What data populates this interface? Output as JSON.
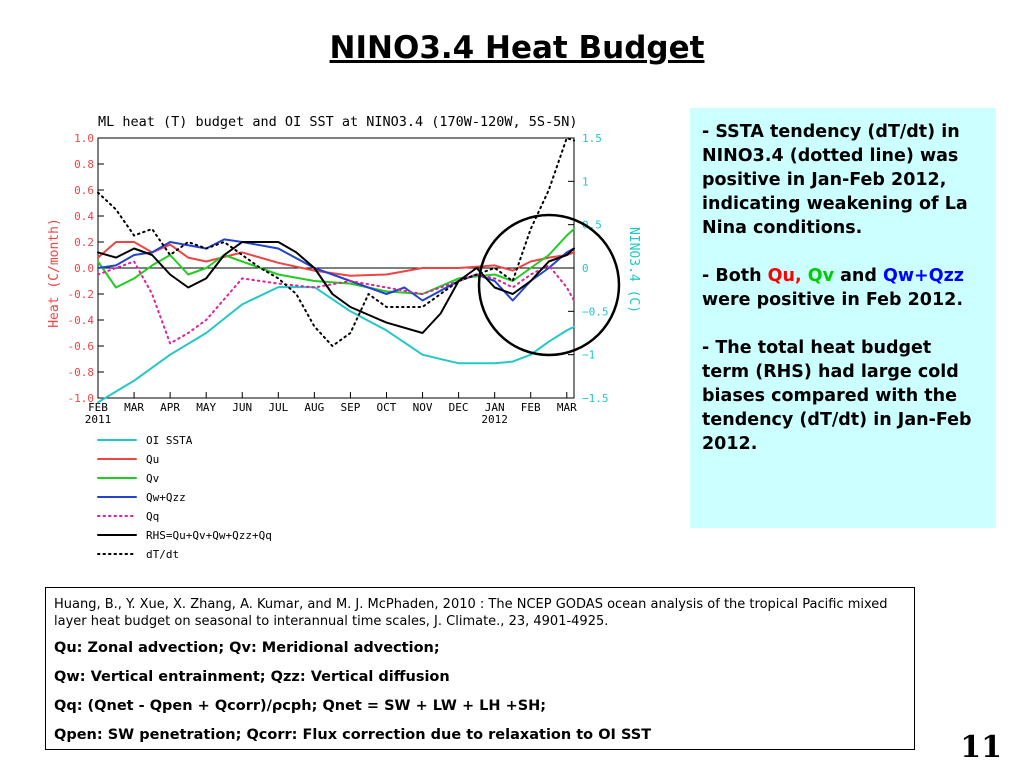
{
  "slide": {
    "title": "NINO3.4 Heat Budget",
    "page_number": "11"
  },
  "info_box": {
    "p1": "SSTA tendency (dT/dt) in NINO3.4 (dotted line) was positive in Jan-Feb 2012, indicating weakening of La Nina conditions.",
    "p2_prefix": "Both ",
    "p2_qu": "Qu,",
    "p2_qv": "Qv",
    "p2_mid": " and ",
    "p2_qwqzz": "Qw+Qzz",
    "p2_suffix": " were positive in Feb 2012.",
    "p3": "The total heat budget term (RHS) had large cold biases compared with the tendency (dT/dt)  in Jan-Feb 2012.",
    "dash": "-"
  },
  "reference": {
    "citation": "Huang, B., Y. Xue, X. Zhang, A. Kumar, and M. J. McPhaden, 2010 : The NCEP GODAS ocean analysis of the tropical Pacific mixed layer heat budget on seasonal to interannual time scales,  J. Climate., 23, 4901-4925.",
    "def1": "Qu: Zonal advection;    Qv: Meridional advection;",
    "def2": "Qw: Vertical entrainment;  Qzz: Vertical diffusion",
    "def3": "Qq: (Qnet - Qpen + Qcorr)/ρcph;  Qnet = SW + LW + LH +SH;",
    "def4": "Qpen: SW penetration; Qcorr: Flux correction due to relaxation to OI SST"
  },
  "chart_data": {
    "type": "line",
    "title": "ML heat (T) budget and OI SST at NINO3.4 (170W-120W, 5S-5N)",
    "ylabel_left": "Heat (C/month)",
    "ylabel_right": "NINO3.4 (C)",
    "ylim_left": [
      -1.0,
      1.0
    ],
    "ylim_right": [
      -1.5,
      1.5
    ],
    "yticks_left": [
      "1.0",
      "0.8",
      "0.6",
      "0.4",
      "0.2",
      "0.0",
      "-0.2",
      "-0.4",
      "-0.6",
      "-0.8",
      "-1.0"
    ],
    "yticks_right": [
      "1.5",
      "1",
      "0.5",
      "0",
      "-0.5",
      "-1",
      "-1.5"
    ],
    "xticks": [
      "FEB",
      "MAR",
      "APR",
      "MAY",
      "JUN",
      "JUL",
      "AUG",
      "SEP",
      "OCT",
      "NOV",
      "DEC",
      "JAN",
      "FEB",
      "MAR"
    ],
    "xsublabels": [
      "2011",
      "2012"
    ],
    "x_range": [
      0,
      13.2
    ],
    "grid": false,
    "legend_position": "below",
    "series": [
      {
        "name": "OI SSTA",
        "axis": "right",
        "color": "#22c8c8",
        "dash": "solid",
        "x": [
          0,
          1,
          2,
          3,
          4,
          5,
          6,
          7,
          8,
          9,
          10,
          11,
          11.5,
          12,
          12.5,
          13,
          13.2
        ],
        "y": [
          -1.55,
          -1.3,
          -1.0,
          -0.75,
          -0.42,
          -0.22,
          -0.22,
          -0.5,
          -0.72,
          -1.0,
          -1.1,
          -1.1,
          -1.08,
          -1.0,
          -0.85,
          -0.72,
          -0.68
        ]
      },
      {
        "name": "Qu",
        "axis": "left",
        "color": "#ee4444",
        "dash": "solid",
        "x": [
          0,
          0.5,
          1,
          1.5,
          2,
          2.5,
          3,
          4,
          5,
          6,
          7,
          8,
          9,
          10,
          11,
          11.5,
          12,
          12.5,
          13,
          13.2
        ],
        "y": [
          0.08,
          0.2,
          0.2,
          0.12,
          0.18,
          0.08,
          0.05,
          0.12,
          0.04,
          -0.02,
          -0.06,
          -0.05,
          0.0,
          0.0,
          0.02,
          -0.02,
          0.05,
          0.08,
          0.1,
          0.12
        ]
      },
      {
        "name": "Qv",
        "axis": "left",
        "color": "#22cc22",
        "dash": "solid",
        "x": [
          0,
          0.5,
          1,
          1.5,
          2,
          2.5,
          3,
          3.5,
          4,
          5,
          6,
          7,
          8,
          9,
          10,
          11,
          11.5,
          12,
          12.5,
          13,
          13.2
        ],
        "y": [
          0.05,
          -0.15,
          -0.08,
          0.02,
          0.1,
          -0.05,
          0.0,
          0.1,
          0.05,
          -0.05,
          -0.1,
          -0.12,
          -0.18,
          -0.2,
          -0.08,
          -0.05,
          -0.1,
          0.0,
          0.1,
          0.25,
          0.3
        ]
      },
      {
        "name": "Qw+Qzz",
        "axis": "left",
        "color": "#2244cc",
        "dash": "solid",
        "x": [
          0,
          0.5,
          1,
          1.5,
          2,
          3,
          3.5,
          4,
          5,
          6,
          7,
          8,
          8.5,
          9,
          10,
          10.5,
          11,
          11.5,
          12,
          12.5,
          13,
          13.2
        ],
        "y": [
          0.0,
          0.02,
          0.1,
          0.12,
          0.2,
          0.15,
          0.22,
          0.2,
          0.15,
          0.0,
          -0.1,
          -0.2,
          -0.15,
          -0.25,
          -0.1,
          -0.05,
          -0.1,
          -0.25,
          -0.1,
          0.0,
          0.12,
          0.15
        ]
      },
      {
        "name": "Qq",
        "axis": "left",
        "color": "#e0209a",
        "dash": "dot",
        "x": [
          0,
          0.5,
          1,
          1.5,
          2,
          2.5,
          3,
          4,
          5,
          6,
          7,
          8,
          9,
          10,
          10.5,
          11,
          11.5,
          12,
          12.5,
          13,
          13.2
        ],
        "y": [
          -0.05,
          0.0,
          0.05,
          -0.2,
          -0.58,
          -0.5,
          -0.4,
          -0.08,
          -0.12,
          -0.15,
          -0.1,
          -0.15,
          -0.2,
          -0.1,
          -0.05,
          -0.08,
          -0.15,
          -0.05,
          0.02,
          -0.15,
          -0.25
        ]
      },
      {
        "name": "RHS=Qu+Qv+Qw+Qzz+Qq",
        "axis": "left",
        "color": "#000000",
        "dash": "solid",
        "x": [
          0,
          0.5,
          1,
          1.5,
          2,
          2.5,
          3,
          3.5,
          4,
          5,
          5.5,
          6,
          6.5,
          7,
          8,
          9,
          9.5,
          10,
          10.5,
          11,
          11.5,
          12,
          12.5,
          13,
          13.2
        ],
        "y": [
          0.12,
          0.08,
          0.15,
          0.1,
          -0.05,
          -0.15,
          -0.08,
          0.1,
          0.2,
          0.2,
          0.12,
          0.0,
          -0.2,
          -0.3,
          -0.42,
          -0.5,
          -0.35,
          -0.1,
          0.0,
          -0.15,
          -0.2,
          -0.1,
          0.05,
          0.1,
          0.15
        ]
      },
      {
        "name": "dT/dt",
        "axis": "left",
        "color": "#000000",
        "dash": "dot",
        "x": [
          0,
          0.5,
          1,
          1.5,
          2,
          2.5,
          3,
          3.5,
          4,
          4.5,
          5,
          5.5,
          6,
          6.5,
          7,
          7.5,
          8,
          9,
          10,
          11,
          11.5,
          12,
          12.5,
          13,
          13.2
        ],
        "y": [
          0.58,
          0.45,
          0.25,
          0.3,
          0.1,
          0.2,
          0.15,
          0.2,
          0.1,
          0.0,
          -0.08,
          -0.2,
          -0.45,
          -0.6,
          -0.5,
          -0.2,
          -0.3,
          -0.3,
          -0.1,
          0.0,
          -0.1,
          0.3,
          0.6,
          1.0,
          0.98
        ]
      }
    ]
  }
}
